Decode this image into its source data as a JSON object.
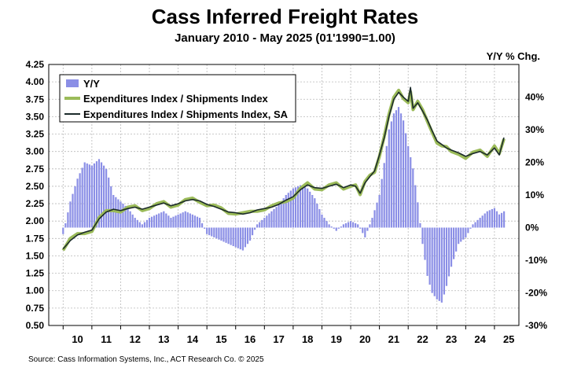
{
  "chart_data": {
    "type": "line",
    "title": "Cass Inferred Freight Rates",
    "subtitle": "January 2010 - May 2025 (01'1990=1.00)",
    "y2label": "Y/Y % Chg.",
    "source": "Source: Cass Information Systems, Inc., ACT Research Co. © 2025",
    "ylim": [
      0.5,
      4.25
    ],
    "y2lim": [
      -30,
      50
    ],
    "left_ticks": [
      "4.25",
      "4.00",
      "3.75",
      "3.50",
      "3.25",
      "3.00",
      "2.75",
      "2.50",
      "2.25",
      "2.00",
      "1.75",
      "1.50",
      "1.25",
      "1.00",
      "0.75",
      "0.50"
    ],
    "right_ticks": [
      "40%",
      "30%",
      "20%",
      "10%",
      "0%",
      "-10%",
      "-20%",
      "-30%"
    ],
    "x_ticks": [
      "10",
      "11",
      "12",
      "13",
      "14",
      "15",
      "16",
      "17",
      "18",
      "19",
      "20",
      "21",
      "22",
      "23",
      "24",
      "25"
    ],
    "grid": true,
    "legend_position": "top-left",
    "legend": {
      "yoy": "Y/Y",
      "nsa": "Expenditures Index / Shipments Index",
      "sa": "Expenditures Index / Shipments Index, SA"
    },
    "colors": {
      "yoy": "#8b8fe6",
      "nsa": "#9bbb59",
      "sa": "#1c2b2b"
    },
    "index_x": [
      2010.0,
      2010.25,
      2010.5,
      2010.75,
      2011.0,
      2011.25,
      2011.5,
      2011.75,
      2012.0,
      2012.25,
      2012.5,
      2012.75,
      2013.0,
      2013.25,
      2013.5,
      2013.75,
      2014.0,
      2014.25,
      2014.5,
      2014.75,
      2015.0,
      2015.25,
      2015.5,
      2015.75,
      2016.0,
      2016.25,
      2016.5,
      2016.75,
      2017.0,
      2017.25,
      2017.5,
      2017.75,
      2018.0,
      2018.25,
      2018.5,
      2018.75,
      2019.0,
      2019.25,
      2019.5,
      2019.75,
      2020.0,
      2020.17,
      2020.33,
      2020.5,
      2020.67,
      2020.83,
      2021.0,
      2021.17,
      2021.33,
      2021.5,
      2021.67,
      2021.83,
      2022.0,
      2022.08,
      2022.17,
      2022.33,
      2022.5,
      2022.67,
      2022.83,
      2023.0,
      2023.17,
      2023.33,
      2023.5,
      2023.75,
      2024.0,
      2024.25,
      2024.5,
      2024.75,
      2025.0,
      2025.17,
      2025.33
    ],
    "index_sa": [
      1.6,
      1.72,
      1.8,
      1.84,
      1.87,
      2.03,
      2.13,
      2.17,
      2.15,
      2.18,
      2.2,
      2.17,
      2.2,
      2.23,
      2.26,
      2.22,
      2.25,
      2.29,
      2.31,
      2.29,
      2.24,
      2.21,
      2.17,
      2.13,
      2.12,
      2.1,
      2.12,
      2.16,
      2.18,
      2.2,
      2.24,
      2.3,
      2.35,
      2.45,
      2.52,
      2.48,
      2.47,
      2.5,
      2.53,
      2.48,
      2.52,
      2.5,
      2.4,
      2.55,
      2.64,
      2.72,
      2.95,
      3.2,
      3.5,
      3.75,
      3.85,
      3.78,
      3.72,
      3.92,
      3.62,
      3.7,
      3.58,
      3.45,
      3.3,
      3.15,
      3.1,
      3.05,
      3.02,
      2.98,
      2.93,
      2.97,
      3.0,
      2.95,
      3.05,
      2.95,
      3.2
    ],
    "index_nsa": [
      1.58,
      1.75,
      1.82,
      1.82,
      1.85,
      2.05,
      2.15,
      2.15,
      2.13,
      2.2,
      2.22,
      2.15,
      2.18,
      2.25,
      2.28,
      2.2,
      2.23,
      2.31,
      2.33,
      2.27,
      2.22,
      2.23,
      2.19,
      2.11,
      2.1,
      2.12,
      2.14,
      2.14,
      2.16,
      2.22,
      2.26,
      2.28,
      2.33,
      2.47,
      2.55,
      2.46,
      2.45,
      2.52,
      2.55,
      2.46,
      2.5,
      2.52,
      2.38,
      2.57,
      2.66,
      2.7,
      2.93,
      3.22,
      3.53,
      3.78,
      3.88,
      3.76,
      3.7,
      3.86,
      3.6,
      3.72,
      3.6,
      3.43,
      3.28,
      3.12,
      3.08,
      3.07,
      3.0,
      2.96,
      2.9,
      2.99,
      3.02,
      2.93,
      3.08,
      2.97,
      3.18
    ],
    "yoy_x": [
      2010.0,
      2010.25,
      2010.5,
      2010.75,
      2011.0,
      2011.25,
      2011.5,
      2011.75,
      2012.0,
      2012.25,
      2012.5,
      2012.75,
      2013.0,
      2013.25,
      2013.5,
      2013.75,
      2014.0,
      2014.25,
      2014.5,
      2014.75,
      2015.0,
      2015.25,
      2015.5,
      2015.75,
      2016.0,
      2016.25,
      2016.5,
      2016.75,
      2017.0,
      2017.25,
      2017.5,
      2017.75,
      2018.0,
      2018.25,
      2018.5,
      2018.75,
      2019.0,
      2019.25,
      2019.5,
      2019.75,
      2020.0,
      2020.25,
      2020.5,
      2020.75,
      2021.0,
      2021.17,
      2021.33,
      2021.5,
      2021.67,
      2021.83,
      2022.0,
      2022.17,
      2022.33,
      2022.5,
      2022.67,
      2022.83,
      2023.0,
      2023.17,
      2023.33,
      2023.5,
      2023.75,
      2024.0,
      2024.25,
      2024.5,
      2024.75,
      2025.0,
      2025.17,
      2025.33
    ],
    "yoy_values": [
      -2,
      8,
      15,
      20,
      19,
      21,
      18,
      10,
      8,
      6,
      3,
      1,
      3,
      4,
      5,
      3,
      4,
      5,
      4,
      3,
      -2,
      -3,
      -4,
      -5,
      -6,
      -7,
      -4,
      1,
      3,
      5,
      7,
      10,
      12,
      13,
      12,
      9,
      4,
      1,
      -1,
      1,
      2,
      1,
      -3,
      3,
      10,
      20,
      30,
      35,
      37,
      33,
      25,
      18,
      8,
      -5,
      -15,
      -20,
      -22,
      -23,
      -18,
      -12,
      -5,
      -3,
      1,
      3,
      5,
      6,
      4,
      5
    ]
  }
}
